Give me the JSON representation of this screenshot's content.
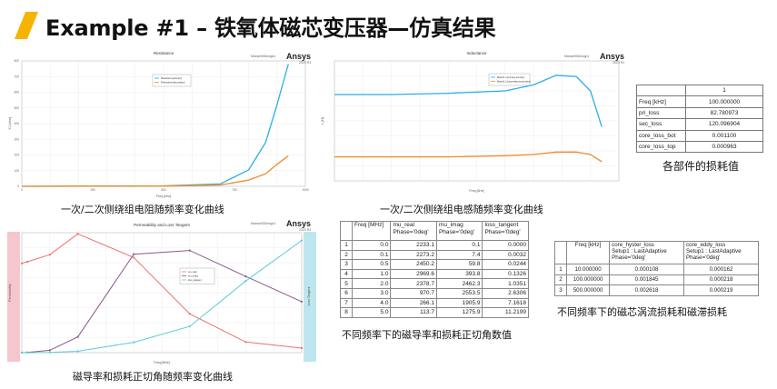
{
  "title": "Example #1 – 铁氧体磁芯变压器—仿真结果",
  "brand": {
    "name": "Ansys",
    "version": "2023 R1",
    "design": "Maxwell3Design1"
  },
  "colors": {
    "accent": "#f5b400",
    "series_blue": "#29aee5",
    "series_orange": "#f08a2a",
    "series_red": "#f07070",
    "series_purple": "#8a5a8a",
    "series_cyan": "#5ccbd8"
  },
  "captions": {
    "resistance": "一次/二次侧绕组电阻随频率变化曲线",
    "inductance": "一次/二次侧绕组电感随频率变化曲线",
    "losses": "各部件的损耗值",
    "permeability": "磁导率和损耗正切角随频率变化曲线",
    "mu_table": "不同频率下的磁导率和损耗正切角数值",
    "core_table": "不同频率下的磁芯涡流损耗和磁滞损耗"
  },
  "loss_table": {
    "header": "1",
    "rows": [
      {
        "label": "Freq [kHz]",
        "value": "100.000000"
      },
      {
        "label": "pri_loss",
        "value": "82.780973"
      },
      {
        "label": "sec_loss",
        "value": "120.096904"
      },
      {
        "label": "core_loss_bot",
        "value": "0.001100"
      },
      {
        "label": "core_loss_top",
        "value": "0.000963"
      }
    ]
  },
  "mu_table": {
    "headers": [
      "",
      "Freq [MHz]",
      "mu_real\nPhase='0deg'",
      "mu_imag\nPhase='0deg'",
      "loss_tangent\nPhase='0deg'"
    ],
    "rows": [
      [
        "1",
        "0.0",
        "2233.1",
        "0.1",
        "0.0000"
      ],
      [
        "2",
        "0.1",
        "2273.2",
        "7.4",
        "0.0032"
      ],
      [
        "3",
        "0.5",
        "2450.2",
        "59.8",
        "0.0244"
      ],
      [
        "4",
        "1.0",
        "2969.6",
        "393.8",
        "0.1326"
      ],
      [
        "5",
        "2.0",
        "2378.7",
        "2462.3",
        "1.0351"
      ],
      [
        "6",
        "3.0",
        "970.7",
        "2553.5",
        "2.6306"
      ],
      [
        "7",
        "4.0",
        "266.1",
        "1905.9",
        "7.1618"
      ],
      [
        "8",
        "5.0",
        "113.7",
        "1275.9",
        "11.2199"
      ]
    ]
  },
  "core_table": {
    "headers": [
      "",
      "Freq [kHz]",
      "core_hyster_loss\nSetup1 : LastAdaptive\nPhase='0deg'",
      "core_eddy_loss\nSetup1 : LastAdaptive\nPhase='0deg'"
    ],
    "rows": [
      [
        "1",
        "10.000000",
        "0.000108",
        "0.000162"
      ],
      [
        "2",
        "100.000000",
        "0.001845",
        "0.000218"
      ],
      [
        "3",
        "500.000000",
        "0.002618",
        "0.000219"
      ]
    ]
  },
  "chart_data": [
    {
      "type": "line",
      "title": "Resistance",
      "xlabel": "Freq [kHz]",
      "ylabel": "Y1 [ohm]",
      "xlim": [
        0,
        1000
      ],
      "ylim": [
        0,
        800
      ],
      "yticks": [
        0,
        100,
        200,
        300,
        400,
        500,
        600,
        700,
        800
      ],
      "xticks": [
        0,
        250,
        500,
        750,
        1000
      ],
      "legend": [
        "Resistance(primary)",
        "Resistance(secondary)"
      ],
      "series": [
        {
          "name": "Resistance(primary)",
          "x": [
            0,
            200,
            500,
            700,
            800,
            860,
            900,
            940
          ],
          "y": [
            0,
            1,
            3,
            15,
            105,
            280,
            520,
            780
          ]
        },
        {
          "name": "Resistance(secondary)",
          "x": [
            0,
            200,
            500,
            700,
            800,
            860,
            900,
            940
          ],
          "y": [
            0,
            1,
            2,
            8,
            40,
            80,
            140,
            195
          ]
        }
      ]
    },
    {
      "type": "line",
      "title": "Inductance",
      "xlabel": "Freq [kHz]",
      "ylabel": "L [H]",
      "xlim": [
        0,
        1000
      ],
      "ylim": [
        0,
        1
      ],
      "legend": [
        "Matrix1.L(primary,primary)",
        "Matrix1.L(secondary,secondary)"
      ],
      "series": [
        {
          "name": "Matrix1.L(primary,primary)",
          "x": [
            0,
            200,
            400,
            600,
            700,
            780,
            850,
            900,
            940
          ],
          "y": [
            0.72,
            0.72,
            0.73,
            0.75,
            0.8,
            0.88,
            0.87,
            0.75,
            0.45
          ]
        },
        {
          "name": "Matrix1.L(secondary,secondary)",
          "x": [
            0,
            200,
            400,
            600,
            700,
            780,
            850,
            900,
            940
          ],
          "y": [
            0.2,
            0.2,
            0.2,
            0.21,
            0.22,
            0.24,
            0.24,
            0.22,
            0.16
          ]
        }
      ]
    },
    {
      "type": "line",
      "title": "Permeability and Loss Tangent",
      "xlabel": "Freq [MHz]",
      "ylabel": "Permeability",
      "y2label": "Loss Tangent",
      "xlim": [
        0,
        5
      ],
      "ylim": [
        0,
        3000
      ],
      "y2lim": [
        0,
        12
      ],
      "legend": [
        "mu_real",
        "mu_imag",
        "loss_tangent"
      ],
      "series": [
        {
          "name": "mu_real",
          "axis": "left",
          "x": [
            0,
            0.1,
            0.5,
            1,
            2,
            3,
            4,
            5
          ],
          "y": [
            2233.1,
            2273.2,
            2450.2,
            2969.6,
            2378.7,
            970.7,
            266.1,
            113.7
          ]
        },
        {
          "name": "mu_imag",
          "axis": "left",
          "x": [
            0,
            0.1,
            0.5,
            1,
            2,
            3,
            4,
            5
          ],
          "y": [
            0.1,
            7.4,
            59.8,
            393.8,
            2462.3,
            2553.5,
            1905.9,
            1275.9
          ]
        },
        {
          "name": "loss_tangent",
          "axis": "right",
          "x": [
            0,
            0.1,
            0.5,
            1,
            2,
            3,
            4,
            5
          ],
          "y": [
            0,
            0.0032,
            0.0244,
            0.1326,
            1.0351,
            2.6306,
            7.1618,
            11.2199
          ]
        }
      ]
    }
  ]
}
